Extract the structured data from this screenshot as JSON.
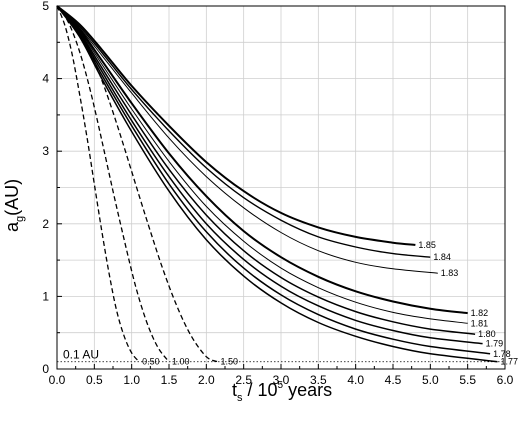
{
  "chart_data": {
    "type": "line",
    "xlabel": {
      "base": "t",
      "sub": "s",
      "mid": "  / 10",
      "sup": "5",
      "tail": " years"
    },
    "ylabel": {
      "base": "a",
      "sub": "g",
      "tail": "(AU)"
    },
    "xlim": [
      0,
      6.0
    ],
    "ylim": [
      0,
      5
    ],
    "xticks": [
      "0.0",
      "0.5",
      "1.0",
      "1.5",
      "2.0",
      "2.5",
      "3.0",
      "3.5",
      "4.0",
      "4.5",
      "5.0",
      "5.5",
      "6.0"
    ],
    "yticks": [
      "0",
      "1",
      "2",
      "3",
      "4",
      "5"
    ],
    "grid": true,
    "reference_line": {
      "y": 0.1,
      "label": "0.1 AU",
      "style": "dotted"
    },
    "series": [
      {
        "name": "1.85",
        "style": "solid",
        "width": 2,
        "x": [
          0,
          0.3,
          0.6,
          1,
          1.5,
          2,
          2.5,
          3,
          3.5,
          4,
          4.5,
          4.8
        ],
        "y": [
          5,
          4.75,
          4.4,
          3.9,
          3.35,
          2.85,
          2.45,
          2.15,
          1.95,
          1.82,
          1.74,
          1.71
        ]
      },
      {
        "name": "1.84",
        "style": "solid",
        "width": 1.4,
        "x": [
          0,
          0.3,
          0.6,
          1,
          1.5,
          2,
          2.5,
          3,
          3.5,
          4,
          4.5,
          5.0
        ],
        "y": [
          5,
          4.72,
          4.36,
          3.85,
          3.28,
          2.77,
          2.36,
          2.05,
          1.82,
          1.68,
          1.59,
          1.54
        ]
      },
      {
        "name": "1.83",
        "style": "solid",
        "width": 1,
        "x": [
          0,
          0.3,
          0.6,
          1,
          1.5,
          2,
          2.5,
          3,
          3.5,
          4,
          4.5,
          5.1
        ],
        "y": [
          5,
          4.7,
          4.32,
          3.8,
          3.18,
          2.65,
          2.22,
          1.88,
          1.63,
          1.47,
          1.38,
          1.32
        ]
      },
      {
        "name": "1.82",
        "style": "solid",
        "width": 2,
        "x": [
          0,
          0.3,
          0.6,
          1,
          1.5,
          2,
          2.5,
          3,
          3.5,
          4,
          4.5,
          5,
          5.5
        ],
        "y": [
          5,
          4.68,
          4.25,
          3.66,
          2.97,
          2.38,
          1.9,
          1.54,
          1.27,
          1.07,
          0.93,
          0.83,
          0.77
        ]
      },
      {
        "name": "1.81",
        "style": "solid",
        "width": 1,
        "x": [
          0,
          0.3,
          0.6,
          1,
          1.5,
          2,
          2.5,
          3,
          3.5,
          4,
          4.5,
          5,
          5.5
        ],
        "y": [
          5,
          4.66,
          4.2,
          3.58,
          2.86,
          2.24,
          1.76,
          1.39,
          1.12,
          0.92,
          0.78,
          0.69,
          0.63
        ]
      },
      {
        "name": "1.80",
        "style": "solid",
        "width": 1.5,
        "x": [
          0,
          0.3,
          0.6,
          1,
          1.5,
          2,
          2.5,
          3,
          3.5,
          4,
          4.5,
          5,
          5.6
        ],
        "y": [
          5,
          4.64,
          4.15,
          3.5,
          2.75,
          2.12,
          1.63,
          1.26,
          0.99,
          0.79,
          0.65,
          0.55,
          0.48
        ]
      },
      {
        "name": "1.79",
        "style": "solid",
        "width": 1.5,
        "x": [
          0,
          0.3,
          0.6,
          1,
          1.5,
          2,
          2.5,
          3,
          3.5,
          4,
          4.5,
          5,
          5.7
        ],
        "y": [
          5,
          4.62,
          4.1,
          3.42,
          2.65,
          2.0,
          1.51,
          1.14,
          0.87,
          0.67,
          0.53,
          0.43,
          0.35
        ]
      },
      {
        "name": "1.78",
        "style": "solid",
        "width": 1.5,
        "x": [
          0,
          0.3,
          0.6,
          1,
          1.5,
          2,
          2.5,
          3,
          3.5,
          4,
          4.5,
          5,
          5.8
        ],
        "y": [
          5,
          4.6,
          4.05,
          3.35,
          2.55,
          1.89,
          1.39,
          1.02,
          0.75,
          0.55,
          0.41,
          0.31,
          0.21
        ]
      },
      {
        "name": "1.77",
        "style": "solid",
        "width": 1.5,
        "x": [
          0,
          0.3,
          0.6,
          1,
          1.5,
          2,
          2.5,
          3,
          3.5,
          4,
          4.5,
          5,
          5.9
        ],
        "y": [
          5,
          4.58,
          4.0,
          3.27,
          2.45,
          1.78,
          1.28,
          0.91,
          0.64,
          0.45,
          0.31,
          0.21,
          0.1
        ]
      },
      {
        "name": "0.50",
        "style": "dashed",
        "width": 1.3,
        "x": [
          0,
          0.1,
          0.2,
          0.3,
          0.4,
          0.5,
          0.6,
          0.7,
          0.8,
          0.9,
          1.0,
          1.1
        ],
        "y": [
          5,
          4.75,
          4.35,
          3.8,
          3.2,
          2.55,
          1.9,
          1.3,
          0.8,
          0.45,
          0.22,
          0.1
        ]
      },
      {
        "name": "1.00",
        "style": "dashed",
        "width": 1.3,
        "x": [
          0,
          0.15,
          0.3,
          0.45,
          0.6,
          0.75,
          0.9,
          1.05,
          1.2,
          1.35,
          1.5
        ],
        "y": [
          5,
          4.78,
          4.38,
          3.82,
          3.15,
          2.45,
          1.78,
          1.15,
          0.65,
          0.3,
          0.1
        ]
      },
      {
        "name": "1.50",
        "style": "dashed",
        "width": 1.3,
        "x": [
          0,
          0.2,
          0.4,
          0.6,
          0.8,
          1.0,
          1.2,
          1.4,
          1.6,
          1.8,
          2.0,
          2.15
        ],
        "y": [
          5,
          4.82,
          4.48,
          3.98,
          3.38,
          2.72,
          2.06,
          1.43,
          0.88,
          0.45,
          0.17,
          0.1
        ]
      }
    ]
  }
}
